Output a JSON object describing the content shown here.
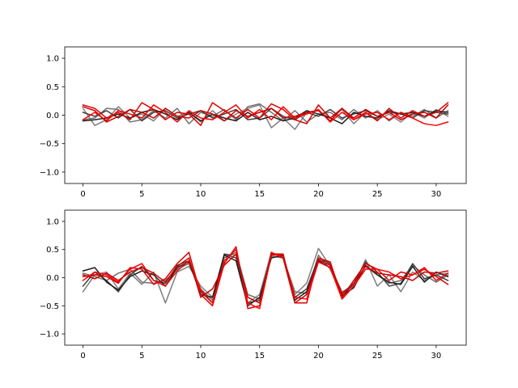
{
  "chart_data": [
    {
      "type": "line",
      "title": "",
      "xlabel": "",
      "ylabel": "",
      "xlim": [
        -1.55,
        32.55
      ],
      "ylim": [
        -1.2,
        1.2
      ],
      "xticks": [
        0,
        5,
        10,
        15,
        20,
        25,
        30
      ],
      "yticks": [
        -1.0,
        -0.5,
        0.0,
        0.5,
        1.0
      ],
      "xtick_labels": [
        "0",
        "5",
        "10",
        "15",
        "20",
        "25",
        "30"
      ],
      "ytick_labels": [
        "−1.0",
        "−0.5",
        "0.0",
        "0.5",
        "1.0"
      ],
      "grid": false,
      "series": [
        {
          "color": "#808080",
          "x": [
            0,
            1,
            2,
            3,
            4,
            5,
            6,
            7,
            8,
            9,
            10,
            11,
            12,
            13,
            14,
            15,
            16,
            17,
            18,
            19,
            20,
            21,
            22,
            23,
            24,
            25,
            26,
            27,
            28,
            29,
            30,
            31
          ],
          "values": [
            0.12,
            -0.18,
            -0.08,
            0.15,
            -0.05,
            0.02,
            -0.1,
            0.12,
            -0.02,
            0.05,
            -0.12,
            0.08,
            -0.1,
            0.02,
            0.12,
            0.18,
            -0.22,
            -0.05,
            -0.25,
            0.05,
            0.08,
            -0.05,
            0.1,
            -0.15,
            0.05,
            -0.08,
            0.02,
            -0.12,
            0.05,
            -0.05,
            0.1,
            -0.02
          ]
        },
        {
          "color": "#707070",
          "x": [
            0,
            1,
            2,
            3,
            4,
            5,
            6,
            7,
            8,
            9,
            10,
            11,
            12,
            13,
            14,
            15,
            16,
            17,
            18,
            19,
            20,
            21,
            22,
            23,
            24,
            25,
            26,
            27,
            28,
            29,
            30,
            31
          ],
          "values": [
            -0.08,
            -0.05,
            0.12,
            0.1,
            -0.12,
            -0.08,
            0.08,
            -0.05,
            0.12,
            -0.15,
            0.05,
            -0.02,
            0.1,
            -0.08,
            0.15,
            0.2,
            0.05,
            -0.1,
            0.08,
            -0.12,
            0.02,
            0.05,
            -0.08,
            0.1,
            -0.05,
            0.08,
            -0.1,
            0.05,
            -0.02,
            0.1,
            -0.05,
            0.08
          ]
        },
        {
          "color": "#404040",
          "x": [
            0,
            1,
            2,
            3,
            4,
            5,
            6,
            7,
            8,
            9,
            10,
            11,
            12,
            13,
            14,
            15,
            16,
            17,
            18,
            19,
            20,
            21,
            22,
            23,
            24,
            25,
            26,
            27,
            28,
            29,
            30,
            31
          ],
          "values": [
            0.05,
            -0.02,
            0.08,
            -0.05,
            0.1,
            -0.1,
            0.05,
            0.08,
            -0.05,
            0.02,
            0.08,
            -0.05,
            0.02,
            0.1,
            -0.08,
            -0.05,
            0.12,
            -0.02,
            -0.08,
            0.05,
            -0.02,
            0.1,
            -0.05,
            0.02,
            0.08,
            -0.02,
            0.05,
            0.02,
            -0.05,
            0.08,
            0.05,
            0.02
          ]
        },
        {
          "color": "#202020",
          "x": [
            0,
            1,
            2,
            3,
            4,
            5,
            6,
            7,
            8,
            9,
            10,
            11,
            12,
            13,
            14,
            15,
            16,
            17,
            18,
            19,
            20,
            21,
            22,
            23,
            24,
            25,
            26,
            27,
            28,
            29,
            30,
            31
          ],
          "values": [
            -0.1,
            -0.08,
            -0.05,
            0.02,
            -0.05,
            0.05,
            0.1,
            0.02,
            -0.08,
            0.05,
            -0.1,
            0.02,
            -0.05,
            -0.1,
            0.05,
            -0.08,
            -0.02,
            -0.1,
            -0.05,
            0.08,
            0.02,
            -0.05,
            -0.15,
            0.05,
            -0.02,
            -0.05,
            0.08,
            0.02,
            0.05,
            -0.02,
            0.08,
            0.05
          ]
        },
        {
          "color": "#e00000",
          "x": [
            0,
            1,
            2,
            3,
            4,
            5,
            6,
            7,
            8,
            9,
            10,
            11,
            12,
            13,
            14,
            15,
            16,
            17,
            18,
            19,
            20,
            21,
            22,
            23,
            24,
            25,
            26,
            27,
            28,
            29,
            30,
            31
          ],
          "values": [
            0.18,
            0.12,
            -0.05,
            0.05,
            -0.08,
            0.22,
            0.1,
            -0.08,
            0.05,
            0.02,
            -0.18,
            0.22,
            0.08,
            -0.05,
            0.1,
            -0.05,
            0.2,
            0.1,
            -0.08,
            -0.15,
            0.18,
            -0.05,
            0.12,
            -0.08,
            0.05,
            -0.1,
            0.12,
            -0.05,
            0.08,
            -0.02,
            0.05,
            0.22
          ]
        },
        {
          "color": "#ff0000",
          "x": [
            0,
            1,
            2,
            3,
            4,
            5,
            6,
            7,
            8,
            9,
            10,
            11,
            12,
            13,
            14,
            15,
            16,
            17,
            18,
            19,
            20,
            21,
            22,
            23,
            24,
            25,
            26,
            27,
            28,
            29,
            30,
            31
          ],
          "values": [
            -0.08,
            0.05,
            -0.1,
            0.08,
            0.02,
            -0.05,
            0.18,
            0.05,
            -0.12,
            0.08,
            -0.05,
            -0.08,
            0.05,
            0.18,
            -0.05,
            0.1,
            -0.08,
            0.15,
            -0.05,
            0.02,
            0.1,
            -0.12,
            0.05,
            -0.08,
            0.02,
            0.05,
            -0.08,
            0.05,
            -0.05,
            -0.15,
            -0.18,
            -0.12
          ]
        },
        {
          "color": "#cc0000",
          "x": [
            0,
            1,
            2,
            3,
            4,
            5,
            6,
            7,
            8,
            9,
            10,
            11,
            12,
            13,
            14,
            15,
            16,
            17,
            18,
            19,
            20,
            21,
            22,
            23,
            24,
            25,
            26,
            27,
            28,
            29,
            30,
            31
          ],
          "values": [
            0.15,
            0.08,
            -0.12,
            -0.02,
            0.1,
            0.05,
            -0.05,
            0.12,
            -0.02,
            -0.05,
            0.08,
            0.02,
            -0.1,
            0.08,
            -0.02,
            0.05,
            0.12,
            -0.05,
            -0.02,
            0.05,
            0.08,
            -0.1,
            0.12,
            -0.05,
            0.1,
            -0.02,
            0.05,
            -0.08,
            0.02,
            0.05,
            -0.05,
            0.18
          ]
        }
      ]
    },
    {
      "type": "line",
      "title": "",
      "xlabel": "",
      "ylabel": "",
      "xlim": [
        -1.55,
        32.55
      ],
      "ylim": [
        -1.2,
        1.2
      ],
      "xticks": [
        0,
        5,
        10,
        15,
        20,
        25,
        30
      ],
      "yticks": [
        -1.0,
        -0.5,
        0.0,
        0.5,
        1.0
      ],
      "xtick_labels": [
        "0",
        "5",
        "10",
        "15",
        "20",
        "25",
        "30"
      ],
      "ytick_labels": [
        "−1.0",
        "−0.5",
        "0.0",
        "0.5",
        "1.0"
      ],
      "grid": false,
      "series": [
        {
          "color": "#808080",
          "x": [
            0,
            1,
            2,
            3,
            4,
            5,
            6,
            7,
            8,
            9,
            10,
            11,
            12,
            13,
            14,
            15,
            16,
            17,
            18,
            19,
            20,
            21,
            22,
            23,
            24,
            25,
            26,
            27,
            28,
            29,
            30,
            31
          ],
          "values": [
            -0.25,
            0.05,
            0.1,
            -0.2,
            0.08,
            -0.12,
            0.1,
            -0.45,
            0.1,
            0.2,
            -0.15,
            -0.35,
            0.42,
            0.4,
            -0.45,
            -0.3,
            0.45,
            0.35,
            -0.3,
            -0.1,
            0.52,
            0.2,
            -0.25,
            -0.15,
            0.32,
            -0.15,
            0.05,
            -0.25,
            0.1,
            -0.05,
            0.05,
            0.08
          ]
        },
        {
          "color": "#707070",
          "x": [
            0,
            1,
            2,
            3,
            4,
            5,
            6,
            7,
            8,
            9,
            10,
            11,
            12,
            13,
            14,
            15,
            16,
            17,
            18,
            19,
            20,
            21,
            22,
            23,
            24,
            25,
            26,
            27,
            28,
            29,
            30,
            31
          ],
          "values": [
            0.08,
            0.02,
            -0.05,
            0.08,
            0.15,
            -0.08,
            -0.1,
            -0.05,
            0.15,
            0.25,
            -0.2,
            -0.4,
            0.35,
            0.45,
            -0.3,
            -0.38,
            0.38,
            0.35,
            -0.25,
            -0.28,
            0.4,
            0.15,
            -0.3,
            -0.12,
            0.2,
            0.05,
            -0.1,
            -0.05,
            0.22,
            0.05,
            -0.08,
            0.05
          ]
        },
        {
          "color": "#404040",
          "x": [
            0,
            1,
            2,
            3,
            4,
            5,
            6,
            7,
            8,
            9,
            10,
            11,
            12,
            13,
            14,
            15,
            16,
            17,
            18,
            19,
            20,
            21,
            22,
            23,
            24,
            25,
            26,
            27,
            28,
            29,
            30,
            31
          ],
          "values": [
            -0.15,
            0.1,
            -0.05,
            -0.25,
            0.05,
            0.2,
            -0.05,
            -0.1,
            0.22,
            0.3,
            -0.25,
            -0.45,
            0.42,
            0.35,
            -0.45,
            -0.4,
            0.42,
            0.38,
            -0.35,
            -0.2,
            0.35,
            0.25,
            -0.35,
            -0.1,
            0.28,
            0.1,
            -0.15,
            -0.1,
            0.25,
            -0.02,
            0.05,
            -0.05
          ]
        },
        {
          "color": "#202020",
          "x": [
            0,
            1,
            2,
            3,
            4,
            5,
            6,
            7,
            8,
            9,
            10,
            11,
            12,
            13,
            14,
            15,
            16,
            17,
            18,
            19,
            20,
            21,
            22,
            23,
            24,
            25,
            26,
            27,
            28,
            29,
            30,
            31
          ],
          "values": [
            0.12,
            0.18,
            -0.08,
            -0.22,
            0.02,
            0.12,
            0.05,
            -0.15,
            0.18,
            0.28,
            -0.3,
            -0.35,
            0.4,
            0.3,
            -0.5,
            -0.35,
            0.35,
            0.4,
            -0.4,
            -0.25,
            0.3,
            0.18,
            -0.32,
            -0.18,
            0.22,
            0.05,
            -0.08,
            -0.12,
            0.2,
            -0.08,
            0.1,
            0.02
          ]
        },
        {
          "color": "#e00000",
          "x": [
            0,
            1,
            2,
            3,
            4,
            5,
            6,
            7,
            8,
            9,
            10,
            11,
            12,
            13,
            14,
            15,
            16,
            17,
            18,
            19,
            20,
            21,
            22,
            23,
            24,
            25,
            26,
            27,
            28,
            29,
            30,
            31
          ],
          "values": [
            0.02,
            0.05,
            0.02,
            -0.1,
            0.18,
            0.15,
            -0.12,
            -0.02,
            0.25,
            0.45,
            -0.3,
            -0.5,
            0.25,
            0.55,
            -0.55,
            -0.5,
            0.45,
            0.35,
            -0.45,
            -0.45,
            0.35,
            0.28,
            -0.35,
            -0.05,
            0.25,
            0.15,
            -0.05,
            0.1,
            0.05,
            0.15,
            0.02,
            -0.12
          ]
        },
        {
          "color": "#ff0000",
          "x": [
            0,
            1,
            2,
            3,
            4,
            5,
            6,
            7,
            8,
            9,
            10,
            11,
            12,
            13,
            14,
            15,
            16,
            17,
            18,
            19,
            20,
            21,
            22,
            23,
            24,
            25,
            26,
            27,
            28,
            29,
            30,
            31
          ],
          "values": [
            -0.05,
            0.1,
            0.05,
            -0.08,
            0.15,
            0.25,
            -0.05,
            -0.15,
            0.12,
            0.3,
            -0.22,
            -0.45,
            0.3,
            0.5,
            -0.45,
            -0.55,
            0.4,
            0.4,
            -0.35,
            -0.38,
            0.28,
            0.18,
            -0.38,
            -0.15,
            0.15,
            0.15,
            0.1,
            -0.02,
            0.05,
            0.18,
            -0.05,
            0.08
          ]
        },
        {
          "color": "#cc0000",
          "x": [
            0,
            1,
            2,
            3,
            4,
            5,
            6,
            7,
            8,
            9,
            10,
            11,
            12,
            13,
            14,
            15,
            16,
            17,
            18,
            19,
            20,
            21,
            22,
            23,
            24,
            25,
            26,
            27,
            28,
            29,
            30,
            31
          ],
          "values": [
            0.05,
            -0.02,
            0.08,
            -0.05,
            0.1,
            0.18,
            0.08,
            -0.08,
            0.2,
            0.35,
            -0.35,
            -0.2,
            0.22,
            0.42,
            -0.35,
            -0.45,
            0.42,
            0.42,
            -0.45,
            -0.3,
            0.32,
            0.22,
            -0.28,
            -0.1,
            0.2,
            0.08,
            0.05,
            0.02,
            -0.05,
            0.1,
            0.08,
            0.12
          ]
        }
      ]
    }
  ]
}
